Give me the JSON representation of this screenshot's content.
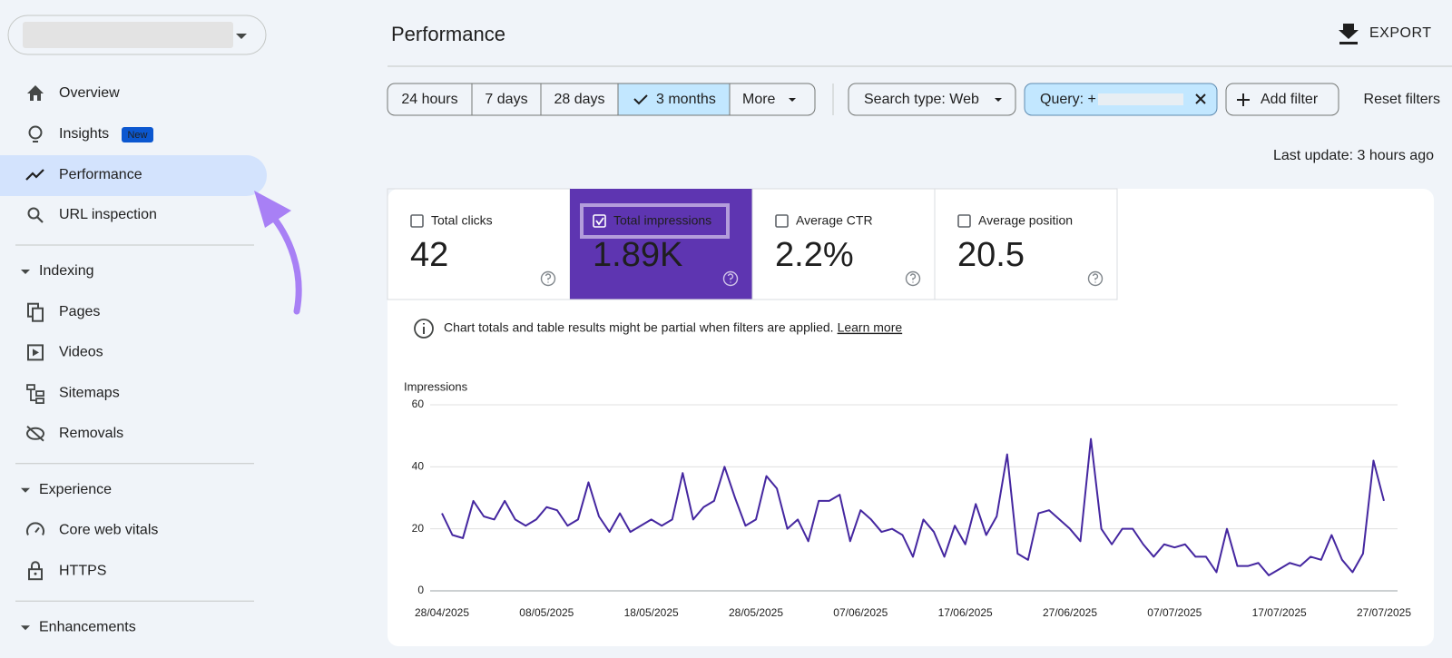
{
  "sidebar": {
    "nav": [
      "Overview",
      "Insights",
      "Performance",
      "URL inspection"
    ],
    "badge": "New",
    "sections": [
      {
        "title": "Indexing",
        "items": [
          "Pages",
          "Videos",
          "Sitemaps",
          "Removals"
        ]
      },
      {
        "title": "Experience",
        "items": [
          "Core web vitals",
          "HTTPS"
        ]
      },
      {
        "title": "Enhancements"
      }
    ]
  },
  "header": {
    "title": "Performance",
    "export": "EXPORT"
  },
  "filters": {
    "date_ranges": [
      "24 hours",
      "7 days",
      "28 days",
      "3 months",
      "More"
    ],
    "search_type": "Search type: Web",
    "query": "Query: +",
    "add_filter": "Add filter",
    "reset": "Reset filters"
  },
  "last_update": "Last update: 3 hours ago",
  "metrics": [
    {
      "label": "Total clicks",
      "value": "42"
    },
    {
      "label": "Total impressions",
      "value": "1.89K"
    },
    {
      "label": "Average CTR",
      "value": "2.2%"
    },
    {
      "label": "Average position",
      "value": "20.5"
    }
  ],
  "notice": {
    "text": "Chart totals and table results might be partial when filters are applied.",
    "link": "Learn more"
  },
  "chart_data": {
    "type": "line",
    "y_label": "Impressions",
    "color": "#4527a0",
    "x": [
      "28/04/2025",
      "29/04/2025",
      "30/04/2025",
      "01/05/2025",
      "02/05/2025",
      "03/05/2025",
      "04/05/2025",
      "05/05/2025",
      "06/05/2025",
      "07/05/2025",
      "08/05/2025",
      "09/05/2025",
      "10/05/2025",
      "11/05/2025",
      "12/05/2025",
      "13/05/2025",
      "14/05/2025",
      "15/05/2025",
      "16/05/2025",
      "17/05/2025",
      "18/05/2025",
      "19/05/2025",
      "20/05/2025",
      "21/05/2025",
      "22/05/2025",
      "23/05/2025",
      "24/05/2025",
      "25/05/2025",
      "26/05/2025",
      "27/05/2025",
      "28/05/2025",
      "29/05/2025",
      "30/05/2025",
      "31/05/2025",
      "01/06/2025",
      "02/06/2025",
      "03/06/2025",
      "04/06/2025",
      "05/06/2025",
      "06/06/2025",
      "07/06/2025",
      "08/06/2025",
      "09/06/2025",
      "10/06/2025",
      "11/06/2025",
      "12/06/2025",
      "13/06/2025",
      "14/06/2025",
      "15/06/2025",
      "16/06/2025",
      "17/06/2025",
      "18/06/2025",
      "19/06/2025",
      "20/06/2025",
      "21/06/2025",
      "22/06/2025",
      "23/06/2025",
      "24/06/2025",
      "25/06/2025",
      "26/06/2025",
      "27/06/2025",
      "28/06/2025",
      "29/06/2025",
      "30/06/2025",
      "01/07/2025",
      "02/07/2025",
      "03/07/2025",
      "04/07/2025",
      "05/07/2025",
      "06/07/2025",
      "07/07/2025",
      "08/07/2025",
      "09/07/2025",
      "10/07/2025",
      "11/07/2025",
      "12/07/2025",
      "13/07/2025",
      "14/07/2025",
      "15/07/2025",
      "16/07/2025",
      "17/07/2025",
      "18/07/2025",
      "19/07/2025",
      "20/07/2025",
      "21/07/2025",
      "22/07/2025",
      "23/07/2025",
      "24/07/2025",
      "25/07/2025",
      "26/07/2025",
      "27/07/2025"
    ],
    "values": [
      25,
      18,
      17,
      29,
      24,
      23,
      29,
      23,
      21,
      23,
      27,
      26,
      21,
      23,
      35,
      24,
      19,
      25,
      19,
      21,
      23,
      21,
      23,
      38,
      23,
      27,
      29,
      40,
      30,
      21,
      23,
      37,
      33,
      20,
      23,
      16,
      29,
      29,
      31,
      16,
      26,
      23,
      19,
      20,
      18,
      11,
      23,
      19,
      11,
      21,
      15,
      28,
      18,
      24,
      44,
      12,
      10,
      25,
      26,
      23,
      20,
      16,
      49,
      20,
      15,
      20,
      20,
      15,
      11,
      15,
      14,
      15,
      11,
      11,
      6,
      20,
      8,
      8,
      9,
      5,
      7,
      9,
      8,
      11,
      10,
      18,
      10,
      6,
      12,
      42,
      29
    ],
    "ylim": [
      0,
      60
    ],
    "yticks": [
      0,
      20,
      40,
      60
    ],
    "xticks": [
      "28/04/2025",
      "08/05/2025",
      "18/05/2025",
      "28/05/2025",
      "07/06/2025",
      "17/06/2025",
      "27/06/2025",
      "07/07/2025",
      "17/07/2025",
      "27/07/2025"
    ],
    "grid": true
  }
}
